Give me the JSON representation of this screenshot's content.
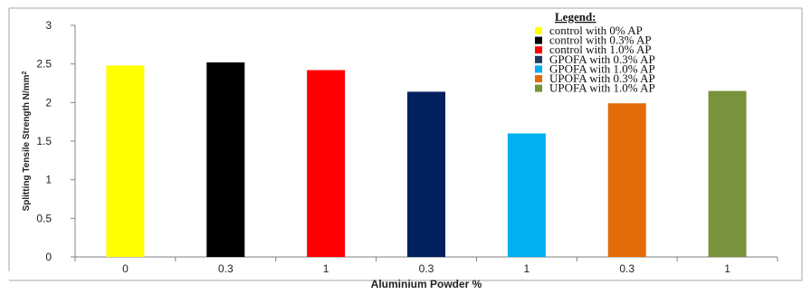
{
  "chart_data": {
    "type": "bar",
    "categories": [
      "0",
      "0.3",
      "1",
      "0.3",
      "1",
      "0.3",
      "1"
    ],
    "values": [
      2.48,
      2.52,
      2.42,
      2.14,
      1.6,
      1.99,
      2.15
    ],
    "bar_colors": [
      "#ffff00",
      "#000000",
      "#ff0000",
      "#002060",
      "#00b0f0",
      "#e36c09",
      "#77933c"
    ],
    "ylim": [
      0,
      3
    ],
    "yticks": [
      "0",
      "0.5",
      "1",
      "1.5",
      "2",
      "2.5",
      "3"
    ],
    "xlabel": "Aluminium Powder %",
    "ylabel_main": "Splitting Tensile Strength N/mm",
    "ylabel_sup": "2",
    "grid": false,
    "legend": {
      "title": "Legend",
      "title_suffix": ":",
      "placement": "top-right",
      "entries": [
        {
          "label": "control with 0% AP",
          "color": "#ffff00"
        },
        {
          "label": "control with 0.3% AP",
          "color": "#000000"
        },
        {
          "label": "control with 1.0% AP",
          "color": "#ff0000"
        },
        {
          "label": "GPOFA  with 0.3% AP",
          "color": "#1f3864"
        },
        {
          "label": "GPOFA  with 1.0% AP",
          "color": "#00b0f0"
        },
        {
          "label": "UPOFA  with  0.3% AP",
          "color": "#e36c09"
        },
        {
          "label": "UPOFA  with 1.0% AP",
          "color": "#77933c"
        }
      ]
    }
  }
}
